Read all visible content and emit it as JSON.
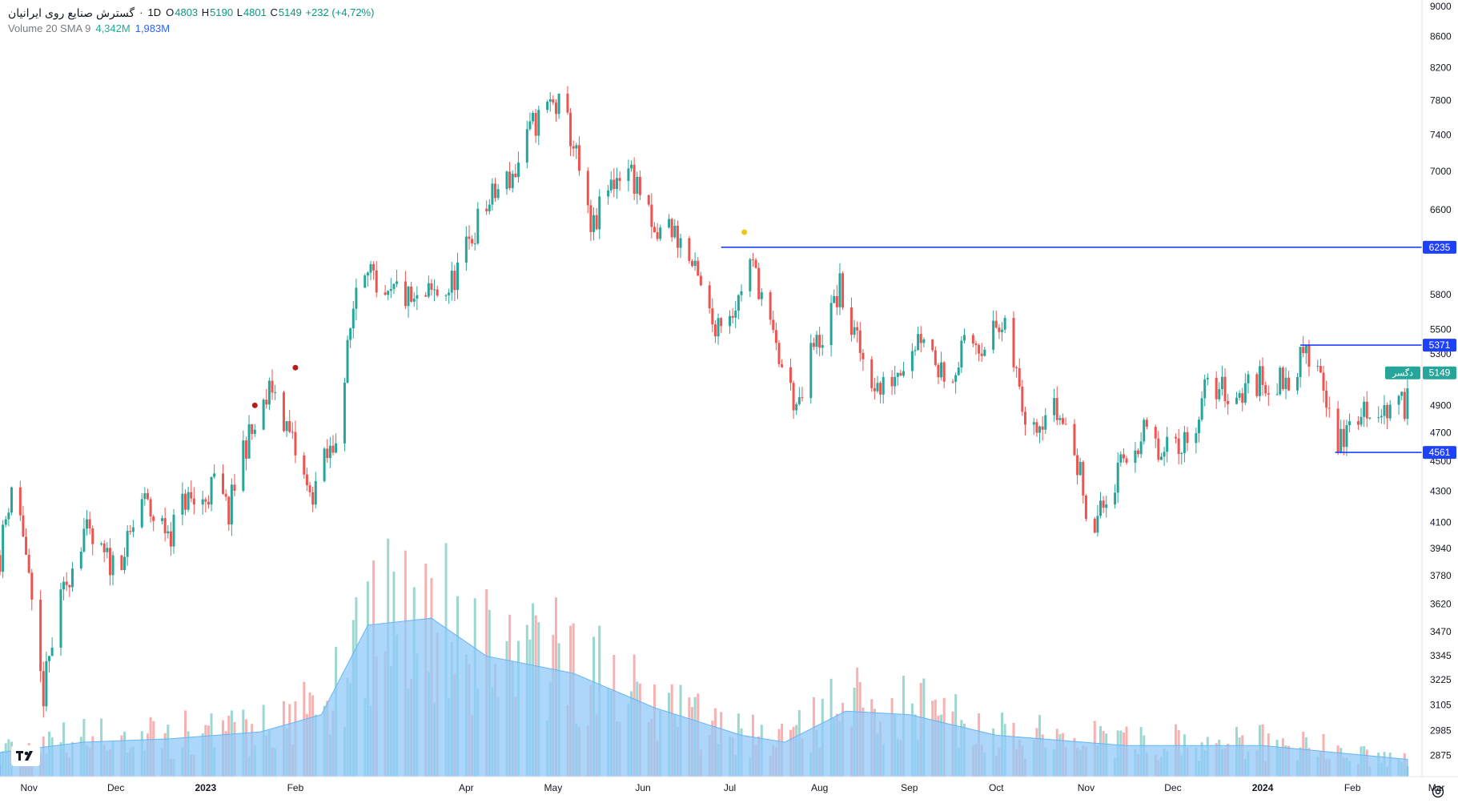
{
  "header": {
    "symbol": "گسترش صنایع روی ایرانیان",
    "interval": "1D",
    "open_label": "O",
    "open": "4803",
    "high_label": "H",
    "high": "5190",
    "low_label": "L",
    "low": "4801",
    "close_label": "C",
    "close": "5149",
    "change": "+232 (+4,72%)"
  },
  "indicator": {
    "name": "Volume 20 SMA 9",
    "volume": "4,342M",
    "sma": "1,983M"
  },
  "price_axis": {
    "ticks": [
      "9000",
      "8600",
      "8200",
      "7800",
      "7400",
      "7000",
      "6600",
      "5800",
      "5500",
      "5300",
      "4900",
      "4700",
      "4500",
      "4300",
      "4100",
      "3940",
      "3780",
      "3620",
      "3470",
      "3345",
      "3225",
      "3105",
      "2985",
      "2875"
    ]
  },
  "time_axis": {
    "ticks": [
      "Nov",
      "Dec",
      "2023",
      "Feb",
      "Apr",
      "May",
      "Jun",
      "Jul",
      "Aug",
      "Sep",
      "Oct",
      "Nov",
      "Dec",
      "2024",
      "Feb",
      "Mar"
    ]
  },
  "horizontal_lines": [
    {
      "value": 6235,
      "label": "6235"
    },
    {
      "value": 5371,
      "label": "5371"
    },
    {
      "value": 4561,
      "label": "4561"
    }
  ],
  "last_price": {
    "value": 5149,
    "label": "5149",
    "tag": "دگسر"
  },
  "colors": {
    "up": "#26a69a",
    "down": "#ef5350",
    "line": "#1e40ff",
    "volume_area": "#90caf9",
    "last_price": "#26a69a"
  },
  "icons": [
    "tradingview-logo-icon",
    "settings-icon"
  ],
  "chart_data": {
    "type": "candlestick",
    "x_start": "2022-10-22",
    "x_end": "2024-02-25",
    "ylim": [
      2800,
      9000
    ],
    "scale": "log",
    "price_path": [
      [
        "2022-10-22",
        3900
      ],
      [
        "2022-10-26",
        4350
      ],
      [
        "2022-10-30",
        4050
      ],
      [
        "2022-11-03",
        3400
      ],
      [
        "2022-11-06",
        3150
      ],
      [
        "2022-11-10",
        3500
      ],
      [
        "2022-11-15",
        3800
      ],
      [
        "2022-11-20",
        4050
      ],
      [
        "2022-11-25",
        3900
      ],
      [
        "2022-11-30",
        3850
      ],
      [
        "2022-12-05",
        3950
      ],
      [
        "2022-12-10",
        4250
      ],
      [
        "2022-12-15",
        4100
      ],
      [
        "2022-12-20",
        4050
      ],
      [
        "2022-12-25",
        4250
      ],
      [
        "2022-12-30",
        4200
      ],
      [
        "2023-01-04",
        4350
      ],
      [
        "2023-01-09",
        4150
      ],
      [
        "2023-01-14",
        4600
      ],
      [
        "2023-01-19",
        4750
      ],
      [
        "2023-01-24",
        5050
      ],
      [
        "2023-01-28",
        4800
      ],
      [
        "2023-02-02",
        4500
      ],
      [
        "2023-02-06",
        4250
      ],
      [
        "2023-02-10",
        4450
      ],
      [
        "2023-02-14",
        4600
      ],
      [
        "2023-02-18",
        5100
      ],
      [
        "2023-02-22",
        5900
      ],
      [
        "2023-02-26",
        6150
      ],
      [
        "2023-03-02",
        5600
      ],
      [
        "2023-03-08",
        5850
      ],
      [
        "2023-03-14",
        5700
      ],
      [
        "2023-03-20",
        5800
      ],
      [
        "2023-03-26",
        5850
      ],
      [
        "2023-04-01",
        6200
      ],
      [
        "2023-04-06",
        6550
      ],
      [
        "2023-04-12",
        6800
      ],
      [
        "2023-04-18",
        7000
      ],
      [
        "2023-04-24",
        7500
      ],
      [
        "2023-04-30",
        7750
      ],
      [
        "2023-05-04",
        7700
      ],
      [
        "2023-05-08",
        7300
      ],
      [
        "2023-05-14",
        6350
      ],
      [
        "2023-05-20",
        6800
      ],
      [
        "2023-05-26",
        7100
      ],
      [
        "2023-05-31",
        6800
      ],
      [
        "2023-06-05",
        6300
      ],
      [
        "2023-06-10",
        6450
      ],
      [
        "2023-06-15",
        6250
      ],
      [
        "2023-06-20",
        5900
      ],
      [
        "2023-06-25",
        5550
      ],
      [
        "2023-06-30",
        5650
      ],
      [
        "2023-07-04",
        5750
      ],
      [
        "2023-07-07",
        6150
      ],
      [
        "2023-07-11",
        5900
      ],
      [
        "2023-07-16",
        5400
      ],
      [
        "2023-07-21",
        5050
      ],
      [
        "2023-07-25",
        4850
      ],
      [
        "2023-07-29",
        5300
      ],
      [
        "2023-08-03",
        5500
      ],
      [
        "2023-08-08",
        5850
      ],
      [
        "2023-08-12",
        5500
      ],
      [
        "2023-08-17",
        5200
      ],
      [
        "2023-08-22",
        5000
      ],
      [
        "2023-08-27",
        5150
      ],
      [
        "2023-09-01",
        5350
      ],
      [
        "2023-09-06",
        5500
      ],
      [
        "2023-09-11",
        5200
      ],
      [
        "2023-09-16",
        5150
      ],
      [
        "2023-09-21",
        5400
      ],
      [
        "2023-09-26",
        5400
      ],
      [
        "2023-10-01",
        5500
      ],
      [
        "2023-10-05",
        5450
      ],
      [
        "2023-10-10",
        4900
      ],
      [
        "2023-10-15",
        4800
      ],
      [
        "2023-10-20",
        4900
      ],
      [
        "2023-10-25",
        4750
      ],
      [
        "2023-10-30",
        4400
      ],
      [
        "2023-11-03",
        4050
      ],
      [
        "2023-11-07",
        4200
      ],
      [
        "2023-11-12",
        4400
      ],
      [
        "2023-11-17",
        4600
      ],
      [
        "2023-11-22",
        4700
      ],
      [
        "2023-11-27",
        4500
      ],
      [
        "2023-12-02",
        4650
      ],
      [
        "2023-12-07",
        4650
      ],
      [
        "2023-12-12",
        5000
      ],
      [
        "2023-12-17",
        5050
      ],
      [
        "2023-12-22",
        4950
      ],
      [
        "2023-12-27",
        5050
      ],
      [
        "2024-01-01",
        5100
      ],
      [
        "2024-01-06",
        5050
      ],
      [
        "2024-01-11",
        5150
      ],
      [
        "2024-01-16",
        5300
      ],
      [
        "2024-01-21",
        5200
      ],
      [
        "2024-01-24",
        4850
      ],
      [
        "2024-01-27",
        4600
      ],
      [
        "2024-01-31",
        4750
      ],
      [
        "2024-02-05",
        4850
      ],
      [
        "2024-02-10",
        4900
      ],
      [
        "2024-02-15",
        4850
      ],
      [
        "2024-02-19",
        4900
      ],
      [
        "2024-02-20",
        5149
      ]
    ],
    "markers": [
      {
        "x": "2023-01-18",
        "y": 4900,
        "color": "#b71c1c"
      },
      {
        "x": "2023-02-01",
        "y": 5190,
        "color": "#b71c1c"
      },
      {
        "x": "2023-07-06",
        "y": 6380,
        "color": "#f0c419"
      }
    ],
    "volume_sma_path": [
      [
        "2022-10-22",
        0.7
      ],
      [
        "2022-11-20",
        1.0
      ],
      [
        "2022-12-20",
        1.1
      ],
      [
        "2023-01-20",
        1.3
      ],
      [
        "2023-02-10",
        1.8
      ],
      [
        "2023-02-26",
        4.4
      ],
      [
        "2023-03-20",
        4.6
      ],
      [
        "2023-04-08",
        3.5
      ],
      [
        "2023-05-08",
        3.0
      ],
      [
        "2023-06-05",
        2.0
      ],
      [
        "2023-07-05",
        1.2
      ],
      [
        "2023-07-20",
        1.0
      ],
      [
        "2023-08-10",
        1.9
      ],
      [
        "2023-09-01",
        1.8
      ],
      [
        "2023-10-01",
        1.2
      ],
      [
        "2023-11-15",
        0.9
      ],
      [
        "2024-01-01",
        0.9
      ],
      [
        "2024-02-20",
        0.5
      ]
    ]
  }
}
